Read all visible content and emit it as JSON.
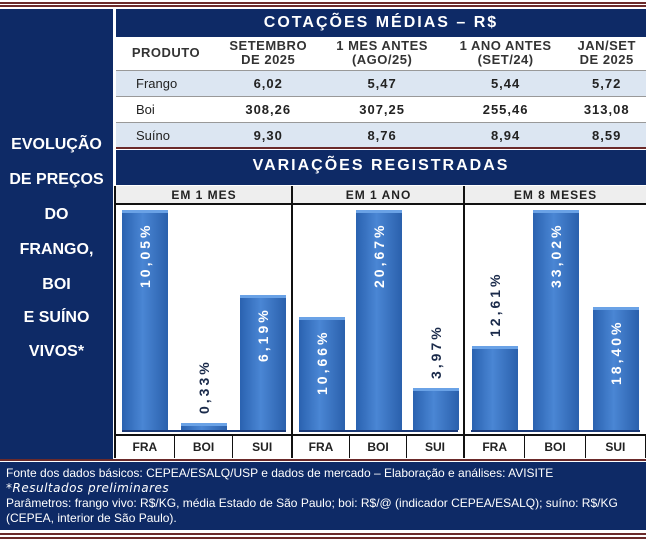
{
  "left_title": [
    "EVOLUÇÃO",
    "DE PREÇOS",
    "DO",
    "FRANGO,",
    "BOI",
    "E SUÍNO",
    "VIVOS*"
  ],
  "table": {
    "title": "COTAÇÕES MÉDIAS – R$",
    "headers": [
      [
        "PRODUTO",
        ""
      ],
      [
        "SETEMBRO",
        "DE 2025"
      ],
      [
        "1 MES ANTES",
        "(AGO/25)"
      ],
      [
        "1 ANO ANTES",
        "(SET/24)"
      ],
      [
        "JAN/SET",
        "DE 2025"
      ]
    ],
    "rows": [
      [
        "Frango",
        "6,02",
        "5,47",
        "5,44",
        "5,72"
      ],
      [
        "Boi",
        "308,26",
        "307,25",
        "255,46",
        "313,08"
      ],
      [
        "Suíno",
        "9,30",
        "8,76",
        "8,94",
        "8,59"
      ]
    ]
  },
  "variations_title": "VARIAÇÕES REGISTRADAS",
  "chart_data": [
    {
      "type": "bar",
      "title": "EM 1 MES",
      "categories": [
        "FRA",
        "BOI",
        "SUI"
      ],
      "values": [
        10.05,
        0.33,
        6.19
      ],
      "labels": [
        "10,05%",
        "0,33%",
        "6,19%"
      ]
    },
    {
      "type": "bar",
      "title": "EM 1 ANO",
      "categories": [
        "FRA",
        "BOI",
        "SUI"
      ],
      "values": [
        10.66,
        20.67,
        3.97
      ],
      "labels": [
        "10,66%",
        "20,67%",
        "3,97%"
      ]
    },
    {
      "type": "bar",
      "title": "EM 8 MESES",
      "categories": [
        "FRA",
        "BOI",
        "SUI"
      ],
      "values": [
        12.61,
        33.02,
        18.4
      ],
      "labels": [
        "12,61%",
        "33,02%",
        "18,40%"
      ]
    }
  ],
  "footer": {
    "source": "Fonte dos dados básicos: CEPEA/ESALQ/USP e dados de mercado – Elaboração e análises: AVISITE",
    "note": "*Resultados preliminares",
    "params": "Parâmetros: frango vivo: R$/KG, média Estado de São Paulo; boi: R$/@ (indicador CEPEA/ESALQ); suíno: R$/KG (CEPEA, interior de São Paulo)."
  }
}
